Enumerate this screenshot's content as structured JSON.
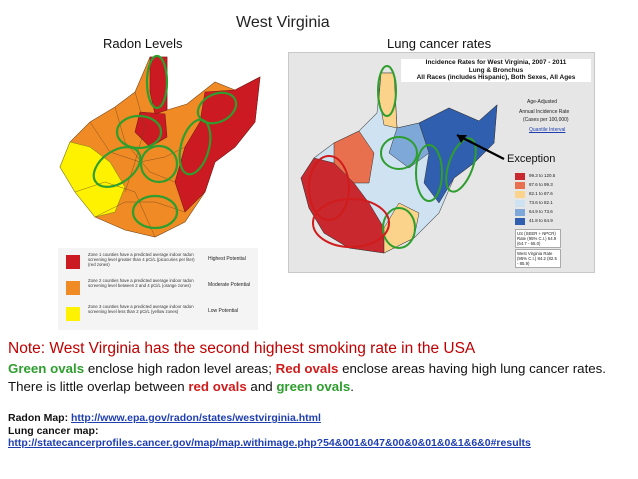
{
  "slide": {
    "title": "West Virginia"
  },
  "radon": {
    "title": "Radon Levels",
    "colors": {
      "zone1": "#cc1a22",
      "zone2": "#f08a24",
      "zone3": "#fff200",
      "oval": "#2e9e2e"
    },
    "legend": [
      {
        "text": "Zone 1 counties have a predicted average indoor radon screening level greater than 4 pCi/L (picocuries per liter) (red zones)",
        "potential": "Highest Potential",
        "color": "#cc1a22"
      },
      {
        "text": "Zone 2 counties have a predicted average indoor radon screening level between 2 and 4 pCi/L (orange zones)",
        "potential": "Moderate Potential",
        "color": "#f08a24"
      },
      {
        "text": "Zone 3 counties have a predicted average indoor radon screening level less than 2 pCi/L (yellow zones)",
        "potential": "Low Potential",
        "color": "#fff200"
      }
    ]
  },
  "lung": {
    "title": "Lung cancer rates",
    "incidence_title": "Incidence Rates for West Virginia, 2007 - 2011",
    "incidence_sub1": "Lung & Bronchus",
    "incidence_sub2": "All Races (includes Hispanic), Both Sexes, All Ages",
    "age_adjusted": "Age-Adjusted",
    "annual_rate": "Annual Incidence Rate",
    "per_100k": "(Cases per 100,000)",
    "quantile": "Quantile Interval",
    "exception": "Exception",
    "legend": [
      {
        "label": "99.3 to 120.5",
        "color": "#c8282e"
      },
      {
        "label": "87.6 to 99.3",
        "color": "#e8704e"
      },
      {
        "label": "82.1 to 87.6",
        "color": "#fbd38a"
      },
      {
        "label": "73.6 to 82.1",
        "color": "#cfe2f2"
      },
      {
        "label": "64.9 to 73.6",
        "color": "#7ea8d8"
      },
      {
        "label": "41.8 to 64.9",
        "color": "#2f5fae"
      }
    ],
    "us_box": "US (SEER + NPCR) Rate (95% C.I.) 64.9 (64.7 - 65.0)",
    "wv_box": "West Virginia Rate (95% C.I.) 84.2 (82.5 - 85.9)"
  },
  "note": "Note: West Virginia has the second highest smoking rate in the USA",
  "description": {
    "p1": "Green ovals",
    "p2": " enclose high radon level areas; ",
    "p3": "Red ovals",
    "p4": " enclose areas having high lung cancer rates.  There is little overlap between ",
    "p5": "red ovals",
    "p6": " and ",
    "p7": "green ovals",
    "p8": "."
  },
  "references": {
    "radon_label": "Radon Map: ",
    "radon_url": "http://www.epa.gov/radon/states/westvirginia.html",
    "lung_label": "Lung cancer map:",
    "lung_url": "http://statecancerprofiles.cancer.gov/map/map.withimage.php?54&001&047&00&0&01&0&1&6&0#results"
  }
}
